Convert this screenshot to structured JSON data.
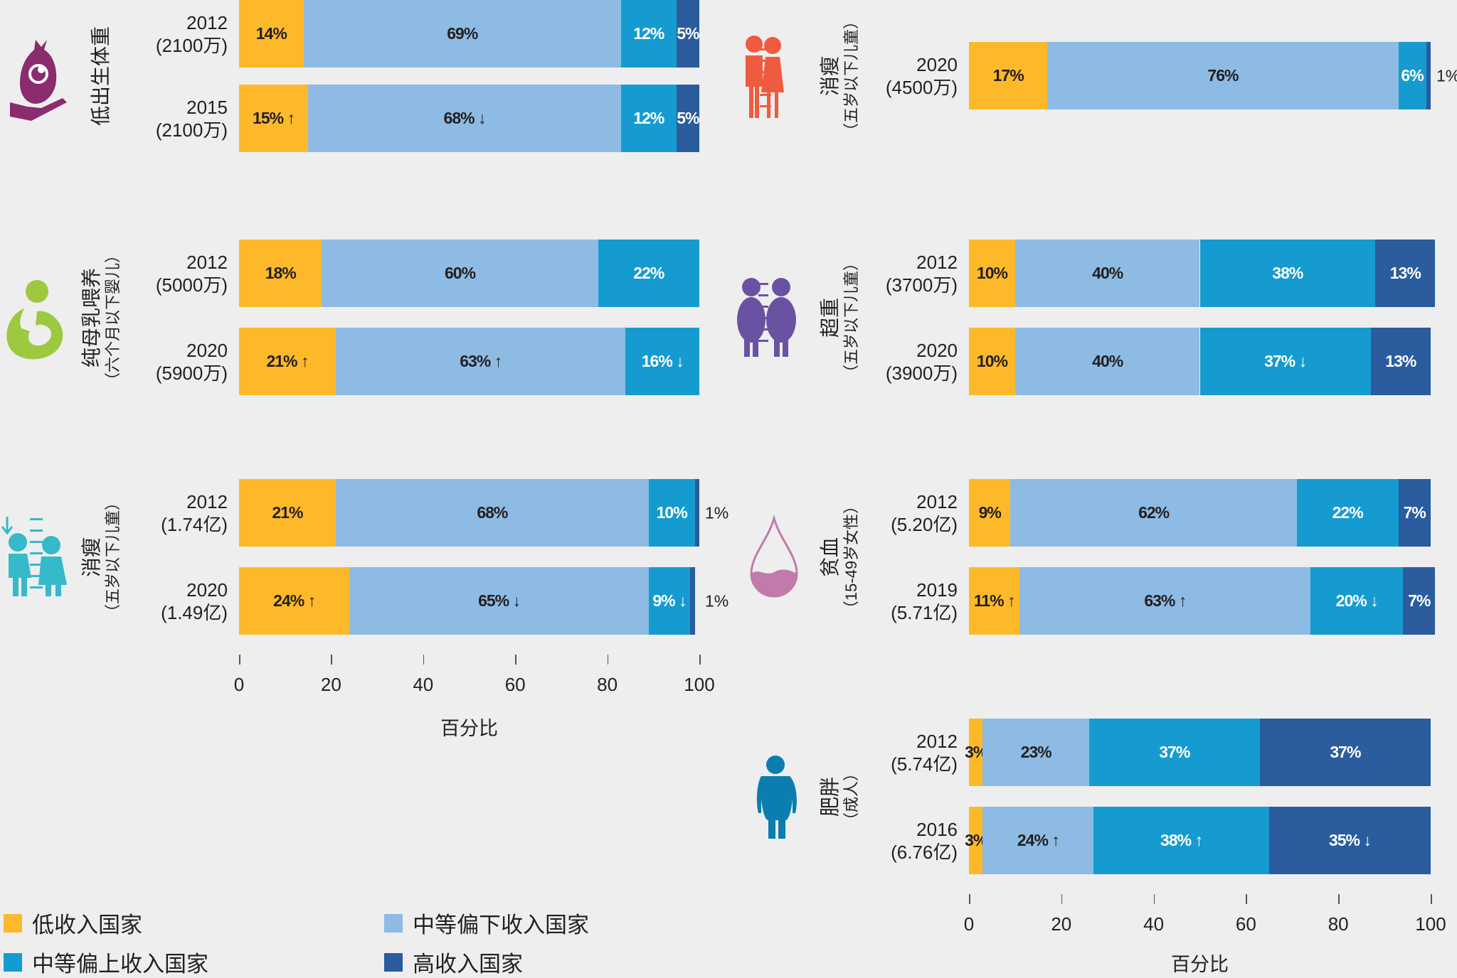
{
  "colors": {
    "low": "#FDB92A",
    "lower_middle": "#8DBBE3",
    "upper_middle": "#169BD0",
    "high": "#2A5C9E"
  },
  "chart_data": {
    "type": "bar",
    "orientation": "horizontal-stacked-100",
    "series_names": [
      "低收入国家",
      "中等偏下收入国家",
      "中等偏上收入国家",
      "高收入国家"
    ],
    "panels": [
      {
        "label": "低出生体重",
        "sublabel": "",
        "icon": "baby-in-hand-icon",
        "icon_color": "#8A2C6E",
        "rows": [
          {
            "year": "2012",
            "count": "(2100万)",
            "values": [
              14,
              69,
              12,
              5
            ],
            "arrows": [
              "",
              "",
              "",
              ""
            ]
          },
          {
            "year": "2015",
            "count": "(2100万)",
            "values": [
              15,
              68,
              12,
              5
            ],
            "arrows": [
              "up",
              "down",
              "",
              ""
            ]
          }
        ]
      },
      {
        "label": "纯母乳喂养",
        "sublabel": "（六个月以下婴儿）",
        "icon": "breastfeeding-icon",
        "icon_color": "#9DC941",
        "rows": [
          {
            "year": "2012",
            "count": "(5000万)",
            "values": [
              18,
              60,
              22,
              0
            ],
            "arrows": [
              "",
              "",
              "",
              ""
            ]
          },
          {
            "year": "2020",
            "count": "(5900万)",
            "values": [
              21,
              63,
              16,
              0
            ],
            "arrows": [
              "up",
              "up",
              "down",
              ""
            ]
          }
        ]
      },
      {
        "label": "消瘦",
        "sublabel": "（五岁以下儿童）",
        "icon": "children-height-down-icon",
        "icon_color": "#36B9C9",
        "rows": [
          {
            "year": "2012",
            "count": "(1.74亿)",
            "values": [
              21,
              68,
              10,
              1
            ],
            "arrows": [
              "",
              "",
              "",
              ""
            ]
          },
          {
            "year": "2020",
            "count": "(1.49亿)",
            "values": [
              24,
              65,
              9,
              1
            ],
            "arrows": [
              "up",
              "down",
              "down",
              ""
            ]
          }
        ]
      },
      {
        "label": "消瘦",
        "sublabel": "（五岁以下儿童）",
        "icon": "thin-children-icon",
        "icon_color": "#EF5B3F",
        "rows": [
          {
            "year": "2020",
            "count": "(4500万)",
            "values": [
              17,
              76,
              6,
              1
            ],
            "arrows": [
              "",
              "",
              "",
              ""
            ]
          }
        ]
      },
      {
        "label": "超重",
        "sublabel": "（五岁以下儿童）",
        "icon": "overweight-children-icon",
        "icon_color": "#6A52A3",
        "rows": [
          {
            "year": "2012",
            "count": "(3700万)",
            "values": [
              10,
              40,
              38,
              13
            ],
            "arrows": [
              "",
              "",
              "",
              ""
            ]
          },
          {
            "year": "2020",
            "count": "(3900万)",
            "values": [
              10,
              40,
              37,
              13
            ],
            "arrows": [
              "",
              "",
              "down",
              ""
            ]
          }
        ]
      },
      {
        "label": "贫血",
        "sublabel": "（15-49岁女性）",
        "icon": "blood-drop-icon",
        "icon_color": "#C07BAA",
        "rows": [
          {
            "year": "2012",
            "count": "(5.20亿)",
            "values": [
              9,
              62,
              22,
              7
            ],
            "arrows": [
              "",
              "",
              "",
              ""
            ]
          },
          {
            "year": "2019",
            "count": "(5.71亿)",
            "values": [
              11,
              63,
              20,
              7
            ],
            "arrows": [
              "up",
              "up",
              "down",
              ""
            ]
          }
        ]
      },
      {
        "label": "肥胖",
        "sublabel": "（成人）",
        "icon": "obese-adult-icon",
        "icon_color": "#0B7DAE",
        "rows": [
          {
            "year": "2012",
            "count": "(5.74亿)",
            "values": [
              3,
              23,
              37,
              37
            ],
            "arrows": [
              "",
              "",
              "",
              ""
            ]
          },
          {
            "year": "2016",
            "count": "(6.76亿)",
            "values": [
              3,
              24,
              38,
              35
            ],
            "arrows": [
              "",
              "up",
              "up",
              "down"
            ]
          }
        ]
      }
    ],
    "xlim": [
      0,
      100
    ],
    "xticks": [
      "0",
      "20",
      "40",
      "60",
      "80",
      "100"
    ],
    "xlabel": "百分比",
    "grid": false,
    "legend_placement": "bottom-left"
  }
}
